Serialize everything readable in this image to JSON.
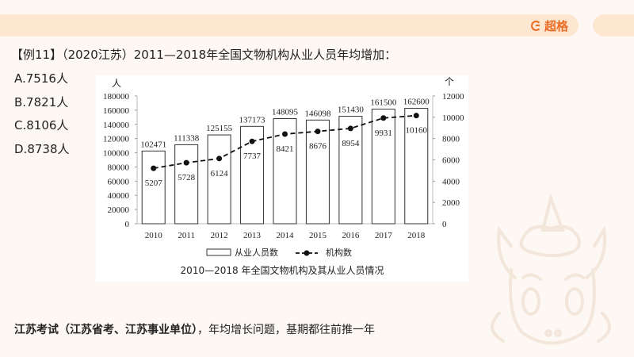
{
  "header": {
    "brand_name": "超格",
    "brand_icon": "g-logo-icon",
    "accent_color": "#ec6b24",
    "bar_color": "#fde7d0"
  },
  "question": {
    "text": "【例11】（2020江苏）2011—2018年全国文物机构从业人员年均增加："
  },
  "options": [
    {
      "label": "A.7516人"
    },
    {
      "label": "B.7821人"
    },
    {
      "label": "C.8106人"
    },
    {
      "label": "D.8738人"
    }
  ],
  "footer": {
    "bold": "江苏考试（江苏省考、江苏事业单位）",
    "rest": "，年均增长问题，基期都往前推一年"
  },
  "chart_data": {
    "type": "bar+line",
    "title": "2010—2018 年全国文物机构及其从业人员情况",
    "categories": [
      "2010",
      "2011",
      "2012",
      "2013",
      "2014",
      "2015",
      "2016",
      "2017",
      "2018"
    ],
    "series": [
      {
        "name": "从业人员数",
        "type": "bar",
        "axis": "left",
        "values": [
          102471,
          111338,
          125155,
          137173,
          148095,
          146098,
          151430,
          161500,
          162600
        ]
      },
      {
        "name": "机构数",
        "type": "line",
        "style": "dashed-with-dots",
        "axis": "right",
        "values": [
          5207,
          5728,
          6124,
          7737,
          8421,
          8676,
          8954,
          9931,
          10160
        ]
      }
    ],
    "ylabel_left": "人",
    "ylabel_right": "个",
    "ylim_left": [
      0,
      180000
    ],
    "yticks_left": [
      "0",
      "20000",
      "40000",
      "60000",
      "80000",
      "100000",
      "120000",
      "140000",
      "160000",
      "180000"
    ],
    "ylim_right": [
      0,
      12000
    ],
    "yticks_right": [
      "0",
      "2000",
      "4000",
      "6000",
      "8000",
      "10000",
      "12000"
    ],
    "legend": [
      "从业人员数",
      "机构数"
    ],
    "legend_position": "bottom",
    "grid": false
  }
}
